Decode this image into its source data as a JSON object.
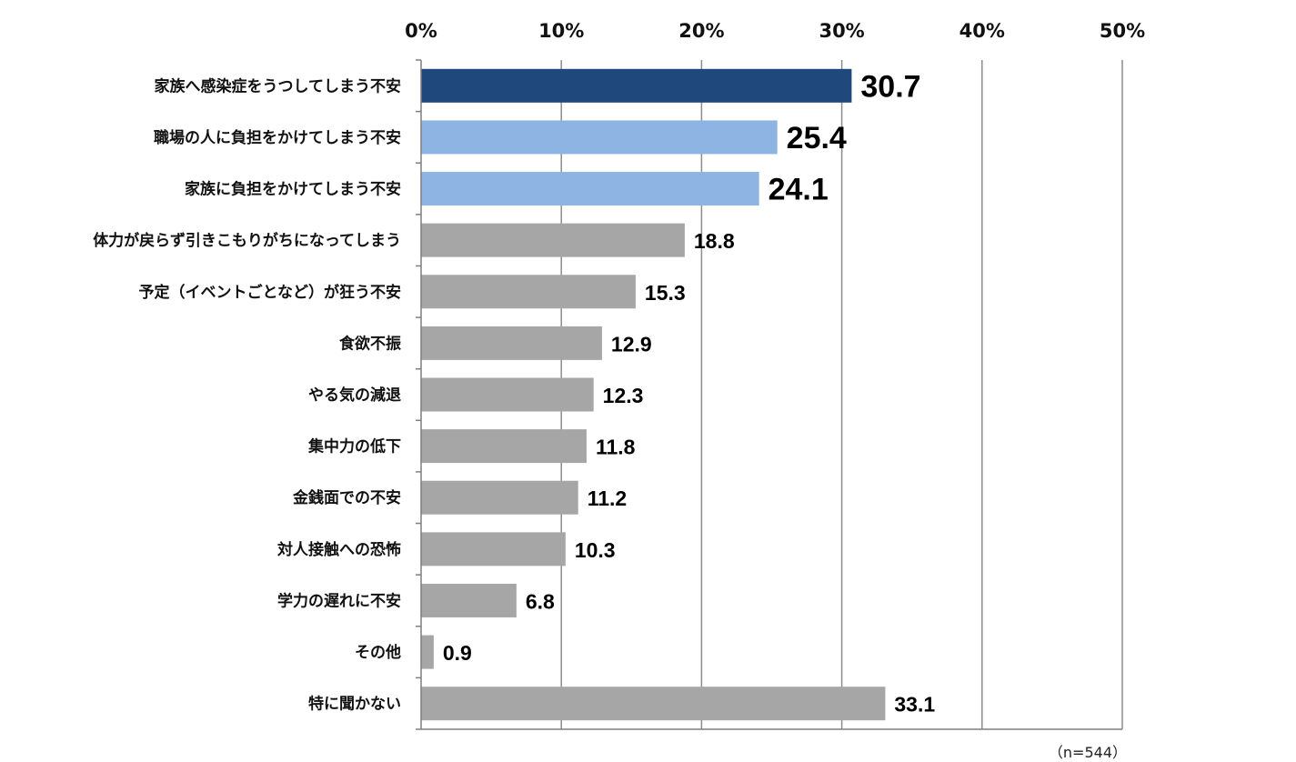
{
  "chart_data": {
    "type": "bar",
    "orientation": "horizontal",
    "categories": [
      "家族へ感染症をうつしてしまう不安",
      "職場の人に負担をかけてしまう不安",
      "家族に負担をかけてしまう不安",
      "体力が戻らず引きこもりがちになってしまう",
      "予定（イベントごとなど）が狂う不安",
      "食欲不振",
      "やる気の減退",
      "集中力の低下",
      "金銭面での不安",
      "対人接触への恐怖",
      "学力の遅れに不安",
      "その他",
      "特に聞かない"
    ],
    "values": [
      30.7,
      25.4,
      24.1,
      18.8,
      15.3,
      12.9,
      12.3,
      11.8,
      11.2,
      10.3,
      6.8,
      0.9,
      33.1
    ],
    "value_labels": [
      "30.7",
      "25.4",
      "24.1",
      "18.8",
      "15.3",
      "12.9",
      "12.3",
      "11.8",
      "11.2",
      "10.3",
      "6.8",
      "0.9",
      "33.1"
    ],
    "bar_colors": [
      "#1f497d",
      "#8eb4e3",
      "#8eb4e3",
      "#a6a6a6",
      "#a6a6a6",
      "#a6a6a6",
      "#a6a6a6",
      "#a6a6a6",
      "#a6a6a6",
      "#a6a6a6",
      "#a6a6a6",
      "#a6a6a6",
      "#a6a6a6"
    ],
    "emphasized": [
      true,
      true,
      true,
      false,
      false,
      false,
      false,
      false,
      false,
      false,
      false,
      false,
      false
    ],
    "xlim": [
      0,
      50
    ],
    "xticks": [
      0,
      10,
      20,
      30,
      40,
      50
    ],
    "xtick_labels": [
      "0%",
      "10%",
      "20%",
      "30%",
      "40%",
      "50%"
    ],
    "x_axis_position": "top",
    "grid": true,
    "title": "",
    "xlabel": "",
    "ylabel": ""
  },
  "note": "（n=544）"
}
